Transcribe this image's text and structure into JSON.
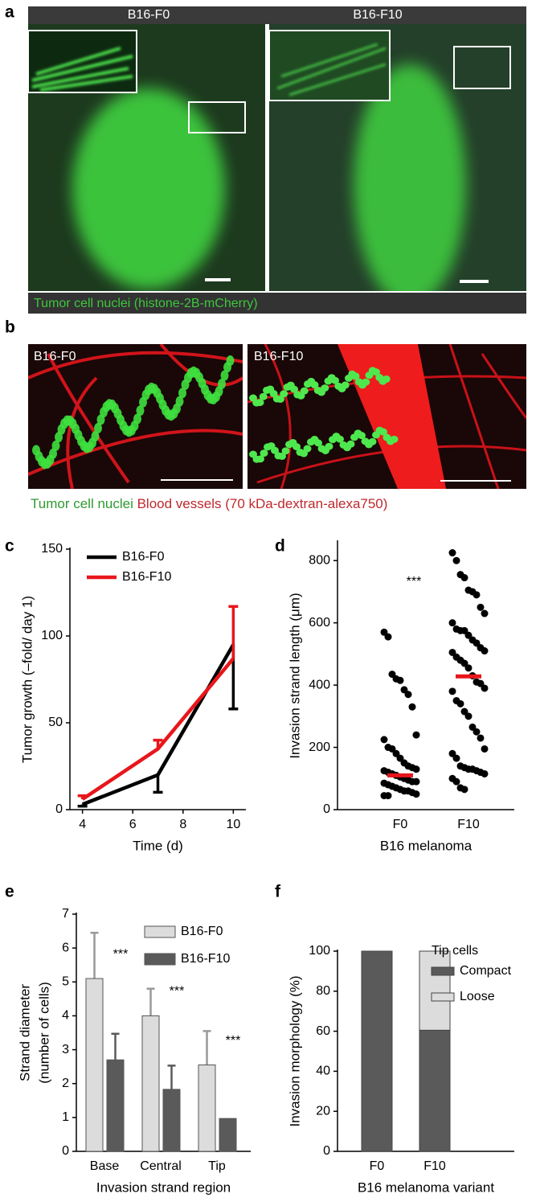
{
  "panel_labels": [
    "a",
    "b",
    "c",
    "d",
    "e",
    "f"
  ],
  "figure_a": {
    "labels": [
      "B16-F0",
      "B16-F10"
    ],
    "caption": "Tumor cell nuclei (histone-2B-mCherry)"
  },
  "figure_b": {
    "labels": [
      "B16-F0",
      "B16-F10"
    ],
    "caption": [
      {
        "text": "Tumor cell nuclei",
        "color": "#2e9a2e"
      },
      {
        "text": "Blood vessels (70 kDa-dextran-alexa750)",
        "color": "#c0282d"
      }
    ]
  },
  "chart_data": [
    {
      "type": "line",
      "x": [
        4,
        7,
        10
      ],
      "xlim": [
        3.5,
        10.5
      ],
      "xticks": [
        4,
        6,
        8,
        10
      ],
      "ylim": [
        0,
        150
      ],
      "yticks": [
        0,
        50,
        100,
        150
      ],
      "x_label": "Time (d)",
      "y_label": "Tumor growth (–fold/ day 1)",
      "series": [
        {
          "name": "B16-F0",
          "color": "#000000",
          "values": [
            3,
            20,
            95
          ],
          "errors": [
            1,
            10,
            37
          ],
          "error_direction": "down"
        },
        {
          "name": "B16-F10",
          "color": "#e8161b",
          "values": [
            6,
            35,
            87
          ],
          "errors": [
            2,
            5,
            30
          ],
          "error_direction": "up"
        }
      ]
    },
    {
      "type": "strip",
      "categories": [
        "F0",
        "F10"
      ],
      "values": [
        [
          570,
          555,
          435,
          420,
          415,
          385,
          370,
          330,
          240,
          225,
          200,
          195,
          180,
          165,
          150,
          140,
          135,
          130,
          125,
          120,
          115,
          110,
          105,
          100,
          95,
          90,
          90,
          85,
          80,
          75,
          70,
          65,
          60,
          60,
          55,
          50,
          45,
          45
        ],
        [
          825,
          800,
          755,
          745,
          705,
          700,
          690,
          650,
          630,
          600,
          580,
          575,
          575,
          560,
          545,
          535,
          520,
          510,
          505,
          490,
          480,
          470,
          455,
          430,
          410,
          405,
          390,
          380,
          350,
          340,
          315,
          300,
          265,
          250,
          230,
          195,
          180,
          165,
          140,
          135,
          130,
          130,
          125,
          120,
          115,
          100,
          90,
          70,
          65
        ]
      ],
      "medians": [
        110,
        428
      ],
      "median_color": "#e8161b",
      "color": "#000000",
      "annotation": "***",
      "ylim": [
        0,
        860
      ],
      "yticks": [
        0,
        200,
        400,
        600,
        800
      ],
      "x_label": "B16 melanoma",
      "y_label": "Invasion strand length (μm)"
    },
    {
      "type": "bar",
      "categories": [
        "Base",
        "Central",
        "Tip"
      ],
      "series": [
        {
          "name": "B16-F0",
          "color": "#dcdcdc",
          "values": [
            5.1,
            4.0,
            2.55
          ],
          "errors": [
            1.35,
            0.8,
            1.0
          ]
        },
        {
          "name": "B16-F10",
          "color": "#5a5a5a",
          "values": [
            2.7,
            1.83,
            0.97
          ],
          "errors": [
            0.77,
            0.7,
            null
          ]
        }
      ],
      "annotations": [
        "***",
        "***",
        "***"
      ],
      "ylim": [
        0,
        7
      ],
      "yticks": [
        0,
        1,
        2,
        3,
        4,
        5,
        6,
        7
      ],
      "x_label": "Invasion strand region",
      "y_label": [
        "Strand diameter",
        "(number of cells)"
      ]
    },
    {
      "type": "stacked_bar",
      "categories": [
        "F0",
        "F10"
      ],
      "series": [
        {
          "name": "Compact",
          "color": "#5a5a5a",
          "values": [
            100,
            60.5
          ]
        },
        {
          "name": "Loose",
          "color": "#dcdcdc",
          "values": [
            0,
            39.5
          ]
        }
      ],
      "legend_title": "Tip cells",
      "ylim": [
        0,
        100
      ],
      "yticks": [
        0,
        20,
        40,
        60,
        80,
        100
      ],
      "x_label": "B16 melanoma variant",
      "y_label": "Invasion morphology (%)"
    }
  ]
}
